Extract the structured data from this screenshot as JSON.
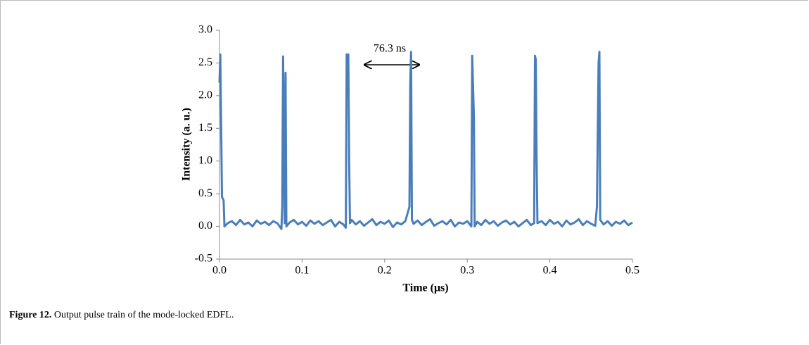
{
  "chart_data": {
    "type": "line",
    "xlabel": "Time (μs)",
    "ylabel": "Intensity (a. u.)",
    "annotation": "76.3 ns",
    "xlim": [
      0,
      0.5
    ],
    "xticks": [
      {
        "value": 0,
        "label": "0.0"
      },
      0.1,
      0.2,
      0.3,
      0.4,
      0.5
    ],
    "ylim": [
      -0.5,
      3
    ],
    "yticks": [
      -0.5,
      {
        "value": 0,
        "label": "0.0"
      },
      0.5,
      {
        "value": 1,
        "label": "1.0"
      },
      1.5,
      {
        "value": 2,
        "label": "2.0"
      },
      2.5,
      {
        "value": 3,
        "label": "3.0"
      }
    ],
    "x": [
      0,
      0.001,
      0.003,
      0.005,
      0.006,
      0.01,
      0.015,
      0.02,
      0.025,
      0.03,
      0.035,
      0.04,
      0.045,
      0.05,
      0.055,
      0.06,
      0.065,
      0.07,
      0.075,
      0.076,
      0.077,
      0.079,
      0.08,
      0.081,
      0.085,
      0.09,
      0.095,
      0.1,
      0.105,
      0.11,
      0.115,
      0.12,
      0.125,
      0.13,
      0.135,
      0.14,
      0.145,
      0.15,
      0.153,
      0.154,
      0.156,
      0.157,
      0.158,
      0.16,
      0.165,
      0.17,
      0.175,
      0.18,
      0.185,
      0.19,
      0.195,
      0.2,
      0.205,
      0.21,
      0.215,
      0.22,
      0.225,
      0.23,
      0.231,
      0.232,
      0.233,
      0.235,
      0.24,
      0.245,
      0.25,
      0.255,
      0.26,
      0.265,
      0.27,
      0.275,
      0.28,
      0.285,
      0.29,
      0.295,
      0.3,
      0.305,
      0.306,
      0.308,
      0.309,
      0.312,
      0.317,
      0.322,
      0.327,
      0.332,
      0.337,
      0.342,
      0.347,
      0.352,
      0.357,
      0.362,
      0.367,
      0.372,
      0.377,
      0.381,
      0.382,
      0.383,
      0.384,
      0.385,
      0.39,
      0.395,
      0.4,
      0.405,
      0.41,
      0.415,
      0.42,
      0.425,
      0.43,
      0.435,
      0.44,
      0.445,
      0.45,
      0.455,
      0.457,
      0.459,
      0.46,
      0.461,
      0.465,
      0.47,
      0.475,
      0.48,
      0.485,
      0.49,
      0.495,
      0.5
    ],
    "series": [
      {
        "name": "Intensity",
        "color": "#4a7ebb",
        "values": [
          2.2,
          2.63,
          0.45,
          0.4,
          0,
          0.05,
          0.08,
          0.02,
          0.1,
          0.03,
          0.06,
          0,
          0.09,
          0.04,
          0.07,
          0.02,
          0.08,
          0.05,
          -0.04,
          0.3,
          2.6,
          0.05,
          2.35,
          0,
          0.06,
          0.1,
          0.03,
          0.07,
          0.01,
          0.09,
          0.04,
          0.08,
          0.02,
          0.06,
          0.1,
          0,
          0.07,
          0.03,
          -0.02,
          2.63,
          2.63,
          1,
          0.05,
          0.1,
          0.03,
          0.08,
          0.01,
          0.06,
          0.11,
          0.02,
          0.07,
          0.04,
          0.09,
          -0.01,
          0.06,
          0.03,
          0.08,
          0.3,
          2.2,
          2.67,
          0.1,
          0.04,
          0.09,
          0.02,
          0.07,
          0.11,
          0.01,
          0.05,
          0.08,
          0.03,
          0.1,
          0,
          0.06,
          0.04,
          0.08,
          0,
          2.61,
          1.7,
          0,
          0.07,
          0.02,
          0.1,
          0.04,
          0.08,
          0.01,
          0.06,
          0.09,
          0.03,
          0.07,
          0,
          0.05,
          0.1,
          0.02,
          0.05,
          2.61,
          2.55,
          1,
          0.05,
          0.08,
          0.02,
          0.1,
          0.04,
          0.07,
          0,
          0.09,
          0.03,
          0.06,
          0.11,
          0.02,
          0.08,
          0.04,
          0.01,
          0.3,
          2.5,
          2.67,
          0.1,
          0.03,
          0.08,
          0.01,
          0.07,
          0.04,
          0.09,
          0.02,
          0.06
        ]
      }
    ]
  },
  "caption": {
    "label": "Figure 12.",
    "text": "Output pulse train of the mode-locked EDFL."
  }
}
